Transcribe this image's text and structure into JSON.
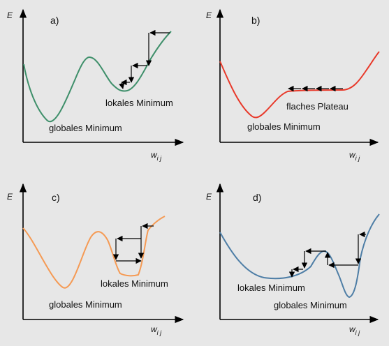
{
  "colors": {
    "background": "#e7e7e7",
    "axis": "#000000",
    "arrow": "#000000",
    "curve_a": "#3e8f6a",
    "curve_b": "#e8392a",
    "curve_c": "#f59a54",
    "curve_d": "#4e7ea6"
  },
  "panels": {
    "a": {
      "letter": "a)",
      "y_axis": "E",
      "x_axis": "w",
      "x_axis_sub": "i j",
      "labels": [
        "lokales Minimum",
        "globales Minimum"
      ]
    },
    "b": {
      "letter": "b)",
      "y_axis": "E",
      "x_axis": "w",
      "x_axis_sub": "i j",
      "labels": [
        "flaches Plateau",
        "globales Minimum"
      ]
    },
    "c": {
      "letter": "c)",
      "y_axis": "E",
      "x_axis": "w",
      "x_axis_sub": "i j",
      "labels": [
        "lokales Minimum",
        "globales Minimum"
      ]
    },
    "d": {
      "letter": "d)",
      "y_axis": "E",
      "x_axis": "w",
      "x_axis_sub": "i j",
      "labels": [
        "lokales Minimum",
        "globales Minimum"
      ]
    }
  }
}
